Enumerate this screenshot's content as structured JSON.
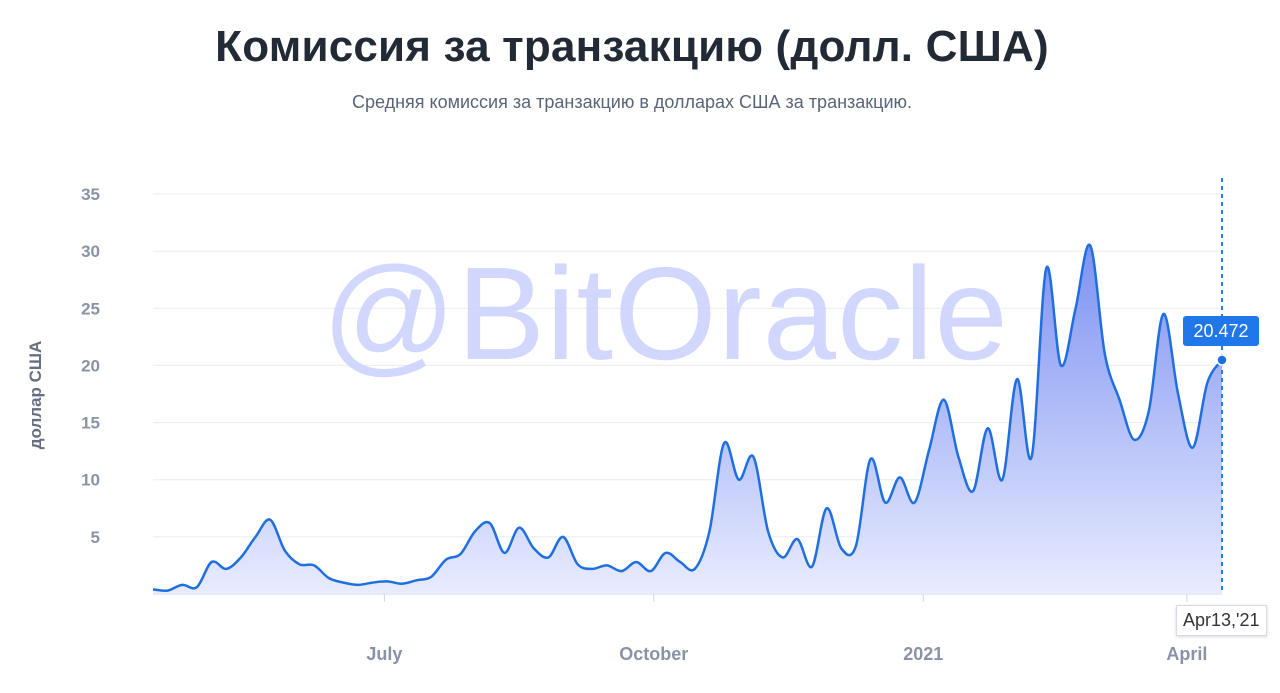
{
  "header": {
    "title": "Комиссия за транзакцию (долл. США)",
    "subtitle": "Средняя комиссия за транзакцию в долларах США за транзакцию."
  },
  "watermark": "@BitOracle",
  "tooltip": {
    "value": "20.472",
    "date": "Apr13,'21"
  },
  "colors": {
    "line": "#1f6fe0",
    "fill_top": "#6f86f0",
    "fill_bottom": "#e6eaff",
    "tooltip": "#1f77ea"
  },
  "chart_data": {
    "type": "area",
    "title": "Комиссия за транзакцию (долл. США)",
    "subtitle": "Средняя комиссия за транзакцию в долларах США за транзакцию.",
    "ylabel": "доллар США",
    "ylim": [
      0,
      35
    ],
    "yticks": [
      5,
      10,
      15,
      20,
      25,
      30,
      35
    ],
    "xlim": [
      "2020-04-13",
      "2021-04-13"
    ],
    "xticks": [
      {
        "label": "July",
        "date": "2020-07-01"
      },
      {
        "label": "October",
        "date": "2020-10-01"
      },
      {
        "label": "2021",
        "date": "2021-01-01"
      },
      {
        "label": "April",
        "date": "2021-04-01"
      }
    ],
    "grid": true,
    "x": [
      "2020-04-13",
      "2020-04-18",
      "2020-04-23",
      "2020-04-28",
      "2020-05-03",
      "2020-05-08",
      "2020-05-13",
      "2020-05-18",
      "2020-05-23",
      "2020-05-28",
      "2020-06-02",
      "2020-06-07",
      "2020-06-12",
      "2020-06-17",
      "2020-06-22",
      "2020-06-27",
      "2020-07-02",
      "2020-07-07",
      "2020-07-12",
      "2020-07-17",
      "2020-07-22",
      "2020-07-27",
      "2020-08-01",
      "2020-08-06",
      "2020-08-11",
      "2020-08-16",
      "2020-08-21",
      "2020-08-26",
      "2020-08-31",
      "2020-09-05",
      "2020-09-10",
      "2020-09-15",
      "2020-09-20",
      "2020-09-25",
      "2020-09-30",
      "2020-10-05",
      "2020-10-10",
      "2020-10-15",
      "2020-10-20",
      "2020-10-25",
      "2020-10-30",
      "2020-11-04",
      "2020-11-09",
      "2020-11-14",
      "2020-11-19",
      "2020-11-24",
      "2020-11-29",
      "2020-12-04",
      "2020-12-09",
      "2020-12-14",
      "2020-12-19",
      "2020-12-24",
      "2020-12-29",
      "2021-01-03",
      "2021-01-08",
      "2021-01-13",
      "2021-01-18",
      "2021-01-23",
      "2021-01-28",
      "2021-02-02",
      "2021-02-07",
      "2021-02-12",
      "2021-02-17",
      "2021-02-22",
      "2021-02-27",
      "2021-03-04",
      "2021-03-09",
      "2021-03-14",
      "2021-03-19",
      "2021-03-24",
      "2021-03-29",
      "2021-04-03",
      "2021-04-08",
      "2021-04-13"
    ],
    "series": [
      {
        "values": [
          0.4,
          0.3,
          0.8,
          0.6,
          2.8,
          2.2,
          3.2,
          5.0,
          6.5,
          3.8,
          2.6,
          2.5,
          1.4,
          1.0,
          0.8,
          1.0,
          1.1,
          0.9,
          1.2,
          1.5,
          3.0,
          3.5,
          5.5,
          6.2,
          3.6,
          5.8,
          4.0,
          3.2,
          5.0,
          2.6,
          2.2,
          2.5,
          2.0,
          2.8,
          2.0,
          3.6,
          2.8,
          2.2,
          5.5,
          13.2,
          10.0,
          12.0,
          5.5,
          3.2,
          4.8,
          2.4,
          7.5,
          4.0,
          4.2,
          11.8,
          8.0,
          10.2,
          8.0,
          12.6,
          17.0,
          12.0,
          9.0,
          14.5,
          10.0,
          18.8,
          12.0,
          28.5,
          20.0,
          25.0,
          30.5,
          21.0,
          17.0,
          13.5,
          16.0,
          24.5,
          17.5,
          12.8,
          18.5,
          20.472
        ]
      }
    ]
  }
}
